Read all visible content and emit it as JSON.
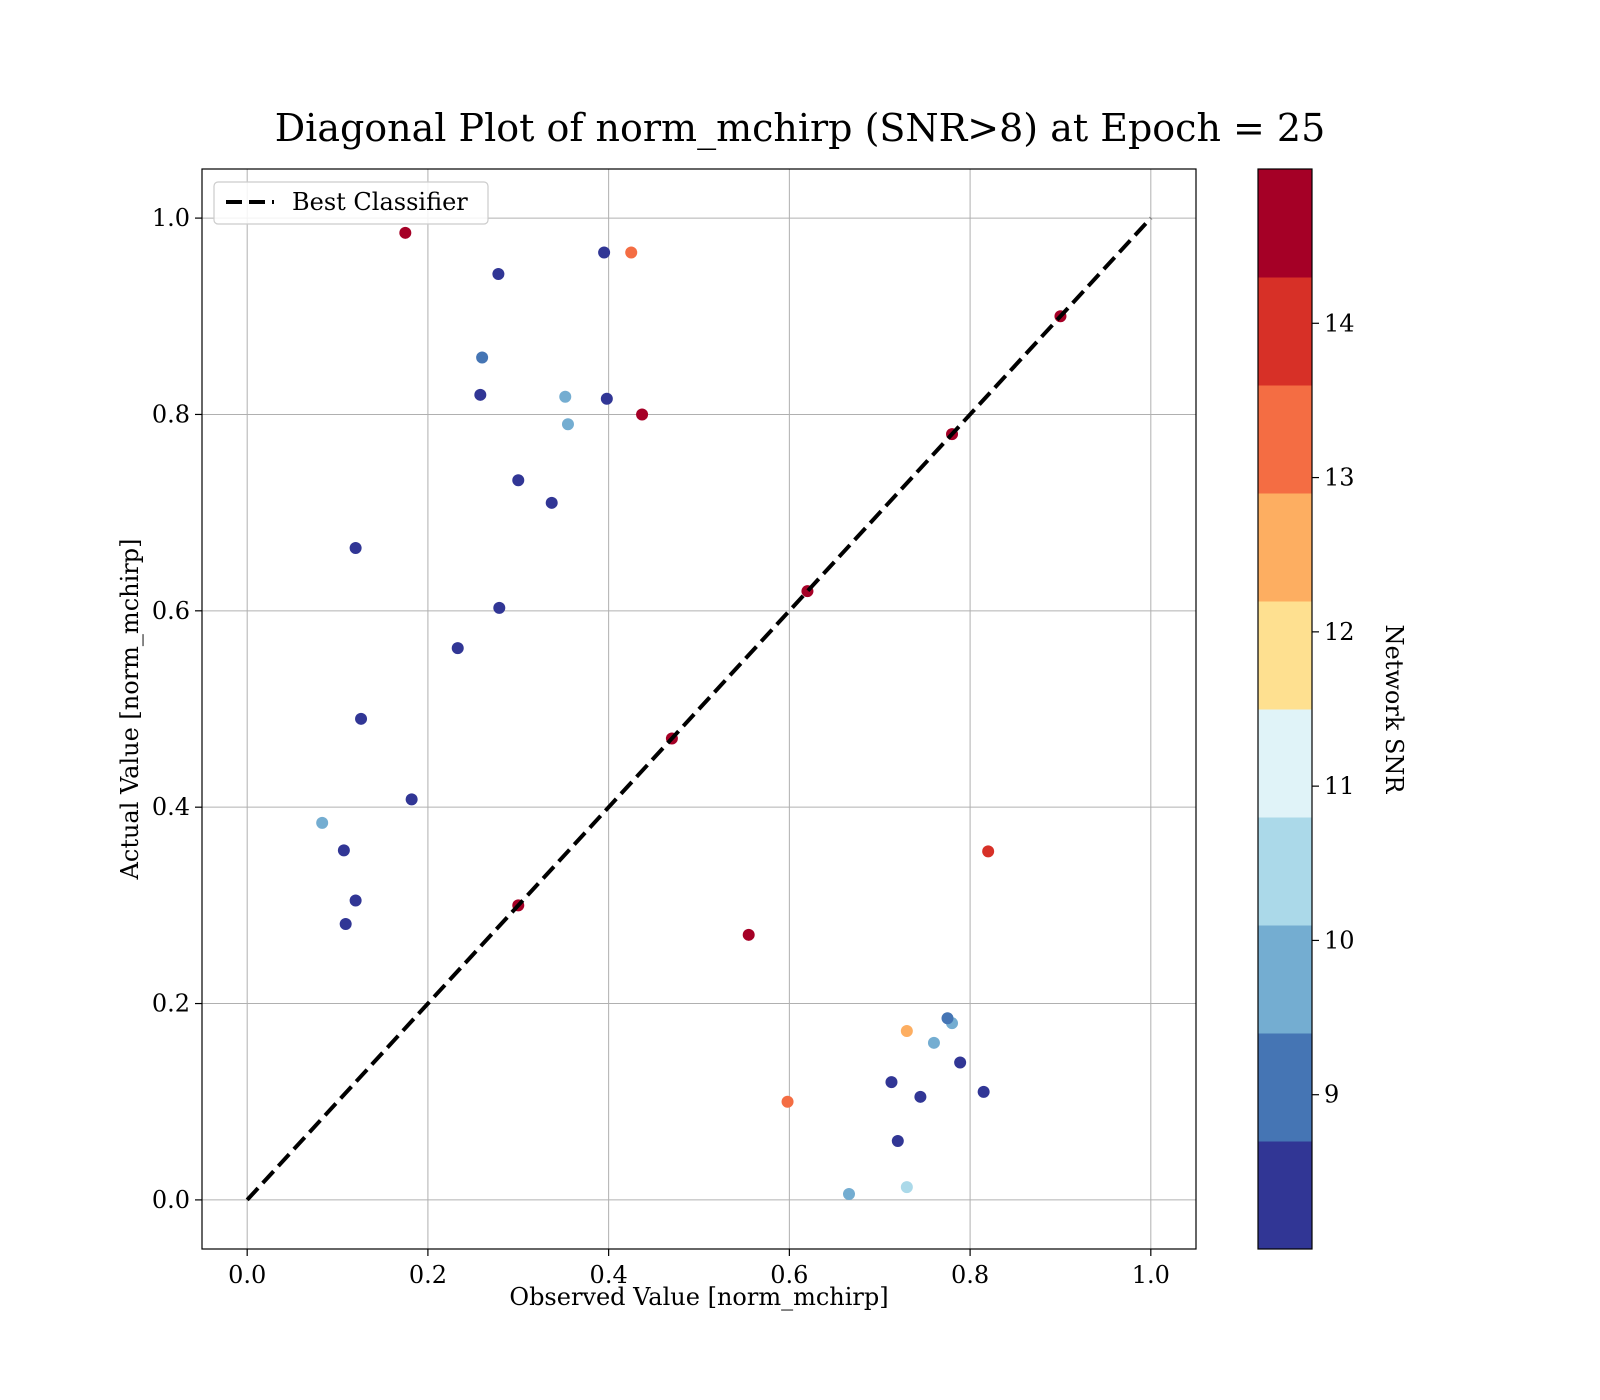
{
  "chart_data": {
    "type": "scatter",
    "title": "Diagonal Plot of norm_mchirp (SNR>8) at Epoch = 25",
    "xlabel": "Observed Value [norm_mchirp]",
    "ylabel": "Actual Value [norm_mchirp]",
    "xlim": [
      -0.05,
      1.05
    ],
    "ylim": [
      -0.05,
      1.05
    ],
    "xticks": [
      0.0,
      0.2,
      0.4,
      0.6,
      0.8,
      1.0
    ],
    "yticks": [
      0.0,
      0.2,
      0.4,
      0.6,
      0.8,
      1.0
    ],
    "xtick_labels": [
      "0.0",
      "0.2",
      "0.4",
      "0.6",
      "0.8",
      "1.0"
    ],
    "ytick_labels": [
      "0.0",
      "0.2",
      "0.4",
      "0.6",
      "0.8",
      "1.0"
    ],
    "grid": true,
    "legend": {
      "position": "top-left",
      "entries": [
        {
          "label": "Best Classifier",
          "style": "dashed",
          "color": "#000000"
        }
      ]
    },
    "reference_line": {
      "name": "Best Classifier",
      "x": [
        0.0,
        1.0
      ],
      "y": [
        0.0,
        1.0
      ]
    },
    "colorbar": {
      "label": "Network SNR",
      "range": [
        8.0,
        15.0
      ],
      "ticks": [
        9,
        10,
        11,
        12,
        13,
        14
      ],
      "tick_labels": [
        "9",
        "10",
        "11",
        "12",
        "13",
        "14"
      ],
      "colors": [
        "#313695",
        "#4575b4",
        "#74add1",
        "#abd9e9",
        "#e0f3f8",
        "#fee090",
        "#fdae61",
        "#f46d43",
        "#d73027",
        "#a50026"
      ]
    },
    "series": [
      {
        "color_by": "Network SNR",
        "points": [
          [
            0.175,
            0.985,
            14.8
          ],
          [
            0.278,
            0.943,
            8.3
          ],
          [
            0.12,
            0.664,
            8.3
          ],
          [
            0.126,
            0.49,
            8.3
          ],
          [
            0.26,
            0.858,
            9.0
          ],
          [
            0.258,
            0.82,
            8.3
          ],
          [
            0.3,
            0.733,
            8.3
          ],
          [
            0.337,
            0.71,
            8.3
          ],
          [
            0.279,
            0.603,
            8.3
          ],
          [
            0.233,
            0.562,
            8.3
          ],
          [
            0.182,
            0.408,
            8.3
          ],
          [
            0.083,
            0.384,
            9.6
          ],
          [
            0.107,
            0.356,
            8.3
          ],
          [
            0.12,
            0.305,
            8.3
          ],
          [
            0.109,
            0.281,
            8.3
          ],
          [
            0.355,
            0.79,
            9.6
          ],
          [
            0.352,
            0.818,
            9.6
          ],
          [
            0.398,
            0.816,
            8.3
          ],
          [
            0.395,
            0.965,
            8.3
          ],
          [
            0.425,
            0.965,
            13.6
          ],
          [
            0.437,
            0.8,
            14.8
          ],
          [
            0.82,
            0.355,
            14.2
          ],
          [
            0.815,
            0.11,
            8.3
          ],
          [
            0.789,
            0.14,
            8.3
          ],
          [
            0.78,
            0.18,
            9.6
          ],
          [
            0.775,
            0.185,
            9.0
          ],
          [
            0.745,
            0.105,
            8.3
          ],
          [
            0.713,
            0.12,
            8.3
          ],
          [
            0.76,
            0.16,
            9.6
          ],
          [
            0.72,
            0.06,
            8.3
          ],
          [
            0.73,
            0.013,
            10.5
          ],
          [
            0.555,
            0.27,
            14.8
          ],
          [
            0.73,
            0.172,
            12.4
          ],
          [
            0.598,
            0.1,
            13.6
          ],
          [
            0.666,
            0.006,
            9.6
          ],
          [
            0.47,
            0.47,
            14.8
          ],
          [
            0.62,
            0.62,
            14.8
          ],
          [
            0.78,
            0.78,
            14.8
          ],
          [
            0.9,
            0.9,
            14.8
          ],
          [
            0.3,
            0.3,
            14.8
          ]
        ]
      }
    ]
  }
}
